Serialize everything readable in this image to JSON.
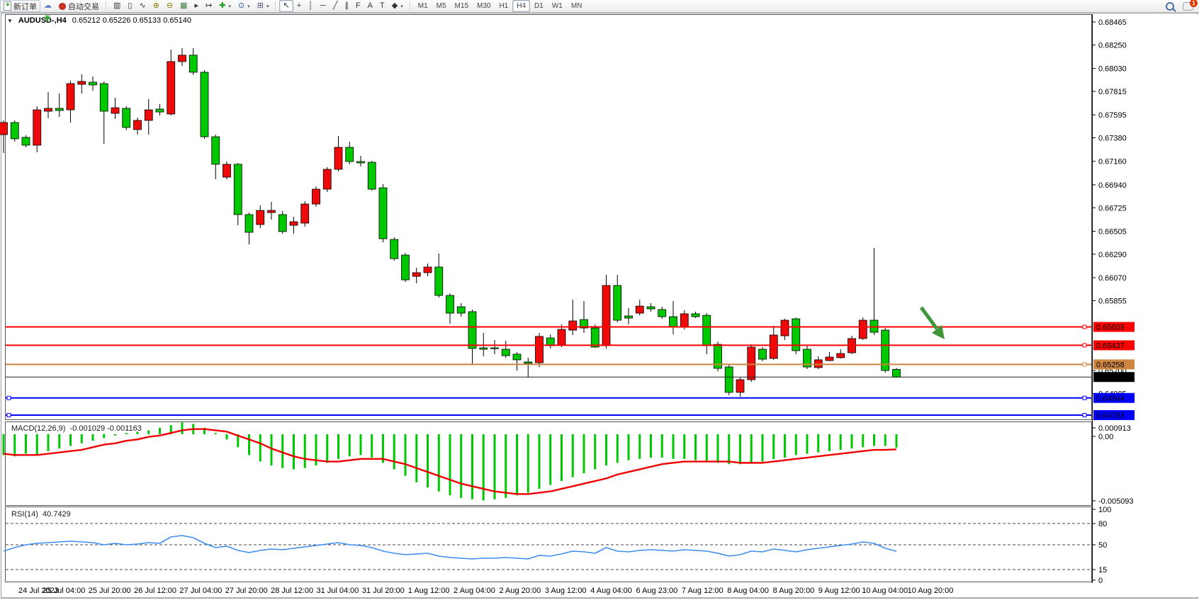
{
  "toolbar": {
    "new_order_label": "新订单",
    "autotrading_label": "自动交易",
    "tool_icons": [
      {
        "name": "metaeditor-icon",
        "glyph": "✎",
        "color": "#c99415"
      },
      {
        "name": "community-icon",
        "glyph": "☁",
        "color": "#5b84c4"
      },
      {
        "name": "signals-icon",
        "glyph": "◉",
        "color": "#2fa32f"
      }
    ],
    "chart_tools": [
      {
        "name": "bar-chart-icon",
        "glyph": "▥",
        "color": "#333"
      },
      {
        "name": "candlestick-chart-icon",
        "glyph": "▯",
        "color": "#333"
      },
      {
        "name": "line-chart-icon",
        "glyph": "∿",
        "color": "#333"
      },
      {
        "name": "zoom-in-icon",
        "glyph": "⊕",
        "color": "#8a7a00"
      },
      {
        "name": "zoom-out-icon",
        "glyph": "⊖",
        "color": "#8a7a00"
      },
      {
        "name": "tile-windows-icon",
        "glyph": "▦",
        "color": "#3a7a3a"
      },
      {
        "name": "auto-scroll-icon",
        "glyph": "▸",
        "color": "#333"
      },
      {
        "name": "chart-shift-icon",
        "glyph": "↦",
        "color": "#333"
      },
      {
        "name": "indicators-icon",
        "glyph": "✚",
        "color": "#1a9c1a",
        "dropdown": true
      },
      {
        "name": "periods-icon",
        "glyph": "⊙",
        "color": "#2255aa",
        "dropdown": true
      },
      {
        "name": "templates-icon",
        "glyph": "⊞",
        "color": "#557",
        "dropdown": true
      }
    ],
    "draw_tools": [
      {
        "name": "cursor-icon",
        "glyph": "↖",
        "active": true
      },
      {
        "name": "crosshair-icon",
        "glyph": "+"
      },
      {
        "name": "vertical-line-icon",
        "glyph": "│"
      },
      {
        "name": "horizontal-line-icon",
        "glyph": "─"
      },
      {
        "name": "trendline-icon",
        "glyph": "╱"
      },
      {
        "name": "channel-icon",
        "glyph": "∥"
      },
      {
        "name": "fibonacci-icon",
        "glyph": "F"
      },
      {
        "name": "text-icon",
        "glyph": "A"
      },
      {
        "name": "label-icon",
        "glyph": "T"
      },
      {
        "name": "shapes-icon",
        "glyph": "◆",
        "dropdown": true
      }
    ],
    "timeframes": [
      "M1",
      "M5",
      "M15",
      "M30",
      "H1",
      "H4",
      "D1",
      "W1",
      "MN"
    ],
    "active_timeframe": "H4",
    "notification_badge": "1"
  },
  "quote": {
    "collapse_glyph": "▼",
    "symbol": "AUDUSD-,H4",
    "ohlc": "0.65212 0.65226 0.65133 0.65140"
  },
  "chart": {
    "colors": {
      "up": "#ee0a0a",
      "down": "#00c800",
      "wick": "#000000",
      "red_line": "#ff0000",
      "orange_line": "#cd8540",
      "blue_line": "#0000ff",
      "bid_line": "#222222",
      "arrow": "#3f9636"
    },
    "price_axis_ticks": [
      "0.68465",
      "0.68250",
      "0.68030",
      "0.67815",
      "0.67595",
      "0.67380",
      "0.67160",
      "0.66940",
      "0.66725",
      "0.66505",
      "0.66290",
      "0.66070",
      "0.65855",
      "0.65200",
      "0.64985"
    ],
    "hlines": [
      {
        "price": 0.65609,
        "label": "0.65609",
        "color": "#ff0000",
        "label_bg": "#ff0000",
        "label_fg": "#ffffff",
        "handles": [
          "right"
        ]
      },
      {
        "price": 0.65437,
        "label": "0.65437",
        "color": "#ff0000",
        "label_bg": "#ff0000",
        "label_fg": "#ffffff",
        "handles": [
          "right"
        ]
      },
      {
        "price": 0.65258,
        "label": "0.65258",
        "color": "#cd8540",
        "label_bg": "#cd8540",
        "label_fg": "#000000",
        "handles": [
          "right"
        ]
      },
      {
        "price": 0.64944,
        "label": "0.64944",
        "color": "#0000ff",
        "label_bg": "#0000ff",
        "label_fg": "#ffffff",
        "handles": [
          "left",
          "right"
        ]
      },
      {
        "price": 0.64783,
        "label": "0.64783",
        "color": "#0000ff",
        "label_bg": "#0000ff",
        "label_fg": "#ffffff",
        "handles": [
          "left",
          "right"
        ]
      }
    ],
    "bid": {
      "price": 0.6514,
      "label": "0.65140",
      "label_bg": "#000000",
      "label_fg": "#ffffff"
    },
    "time_labels": [
      "24 Jul 2023",
      "25 Jul 04:00",
      "25 Jul 20:00",
      "26 Jul 12:00",
      "27 Jul 04:00",
      "27 Jul 20:00",
      "28 Jul 12:00",
      "31 Jul 04:00",
      "31 Jul 20:00",
      "1 Aug 12:00",
      "2 Aug 04:00",
      "2 Aug 20:00",
      "3 Aug 12:00",
      "4 Aug 04:00",
      "6 Aug 23:00",
      "7 Aug 12:00",
      "8 Aug 04:00",
      "8 Aug 20:00",
      "9 Aug 12:00",
      "10 Aug 04:00",
      "10 Aug 20:00"
    ],
    "candles": [
      [
        0.6741,
        0.67543,
        0.67238,
        0.67523
      ],
      [
        0.67523,
        0.67543,
        0.67344,
        0.67371
      ],
      [
        0.67384,
        0.67404,
        0.67291,
        0.67311
      ],
      [
        0.67311,
        0.67676,
        0.67245,
        0.67642
      ],
      [
        0.67629,
        0.67808,
        0.67563,
        0.67656
      ],
      [
        0.67656,
        0.67795,
        0.67576,
        0.67636
      ],
      [
        0.67642,
        0.67915,
        0.67523,
        0.67888
      ],
      [
        0.67881,
        0.67974,
        0.67795,
        0.67908
      ],
      [
        0.67901,
        0.67954,
        0.67821,
        0.67875
      ],
      [
        0.67888,
        0.67908,
        0.67324,
        0.67629
      ],
      [
        0.67609,
        0.67755,
        0.67556,
        0.67662
      ],
      [
        0.67656,
        0.67676,
        0.6745,
        0.67477
      ],
      [
        0.67457,
        0.67569,
        0.6741,
        0.67543
      ],
      [
        0.67543,
        0.67742,
        0.6741,
        0.67642
      ],
      [
        0.67649,
        0.67696,
        0.67589,
        0.67622
      ],
      [
        0.67603,
        0.68206,
        0.67589,
        0.68094
      ],
      [
        0.68094,
        0.6822,
        0.68054,
        0.68154
      ],
      [
        0.68154,
        0.6822,
        0.67968,
        0.67994
      ],
      [
        0.67994,
        0.68014,
        0.67371,
        0.6739
      ],
      [
        0.6739,
        0.6741,
        0.66992,
        0.67132
      ],
      [
        0.67012,
        0.67158,
        0.66992,
        0.67132
      ],
      [
        0.67132,
        0.67145,
        0.66561,
        0.66661
      ],
      [
        0.66661,
        0.6668,
        0.66382,
        0.66495
      ],
      [
        0.66568,
        0.66747,
        0.66535,
        0.667
      ],
      [
        0.6668,
        0.6678,
        0.66614,
        0.667
      ],
      [
        0.66661,
        0.66694,
        0.66481,
        0.66502
      ],
      [
        0.66561,
        0.66641,
        0.66482,
        0.66594
      ],
      [
        0.66581,
        0.66786,
        0.66548,
        0.6676
      ],
      [
        0.6676,
        0.66925,
        0.66734,
        0.66899
      ],
      [
        0.66899,
        0.67105,
        0.66872,
        0.67085
      ],
      [
        0.67085,
        0.67397,
        0.67066,
        0.67291
      ],
      [
        0.67291,
        0.67344,
        0.67132,
        0.67158
      ],
      [
        0.67158,
        0.67211,
        0.67112,
        0.67145
      ],
      [
        0.67151,
        0.67165,
        0.66886,
        0.66899
      ],
      [
        0.66912,
        0.66946,
        0.66402,
        0.66435
      ],
      [
        0.66428,
        0.66448,
        0.66229,
        0.66249
      ],
      [
        0.66282,
        0.66302,
        0.6603,
        0.6605
      ],
      [
        0.66083,
        0.66163,
        0.66017,
        0.66117
      ],
      [
        0.66117,
        0.66203,
        0.66083,
        0.6617
      ],
      [
        0.6617,
        0.66296,
        0.65884,
        0.65904
      ],
      [
        0.65904,
        0.65924,
        0.65639,
        0.65738
      ],
      [
        0.65798,
        0.65831,
        0.65705,
        0.65738
      ],
      [
        0.65752,
        0.65772,
        0.65254,
        0.65407
      ],
      [
        0.65413,
        0.65553,
        0.65334,
        0.654
      ],
      [
        0.65413,
        0.65486,
        0.65354,
        0.65407
      ],
      [
        0.654,
        0.6548,
        0.6532,
        0.6534
      ],
      [
        0.65354,
        0.65374,
        0.65201,
        0.65301
      ],
      [
        0.65281,
        0.65321,
        0.65135,
        0.65268
      ],
      [
        0.65274,
        0.65553,
        0.65234,
        0.6552
      ],
      [
        0.65506,
        0.65539,
        0.65407,
        0.65433
      ],
      [
        0.6544,
        0.65632,
        0.6542,
        0.65586
      ],
      [
        0.65579,
        0.65864,
        0.65533,
        0.65665
      ],
      [
        0.65678,
        0.65851,
        0.65553,
        0.65599
      ],
      [
        0.65599,
        0.65632,
        0.65413,
        0.6542
      ],
      [
        0.65433,
        0.66097,
        0.65407,
        0.65997
      ],
      [
        0.65997,
        0.66097,
        0.65652,
        0.65672
      ],
      [
        0.65712,
        0.65785,
        0.65632,
        0.65692
      ],
      [
        0.65738,
        0.65864,
        0.65718,
        0.65804
      ],
      [
        0.65798,
        0.65831,
        0.65752,
        0.65778
      ],
      [
        0.65772,
        0.65798,
        0.65685,
        0.65705
      ],
      [
        0.65705,
        0.65851,
        0.65539,
        0.65606
      ],
      [
        0.65606,
        0.65765,
        0.65586,
        0.65732
      ],
      [
        0.65732,
        0.65752,
        0.65692,
        0.65705
      ],
      [
        0.65718,
        0.65738,
        0.65354,
        0.65433
      ],
      [
        0.65446,
        0.65473,
        0.65194,
        0.65221
      ],
      [
        0.65234,
        0.65254,
        0.64969,
        0.64996
      ],
      [
        0.64996,
        0.65135,
        0.64956,
        0.65115
      ],
      [
        0.65115,
        0.65446,
        0.65095,
        0.6542
      ],
      [
        0.654,
        0.6542,
        0.65287,
        0.65307
      ],
      [
        0.65314,
        0.65619,
        0.65301,
        0.65533
      ],
      [
        0.65526,
        0.65685,
        0.65486,
        0.65672
      ],
      [
        0.65685,
        0.65698,
        0.65354,
        0.65387
      ],
      [
        0.654,
        0.65433,
        0.65214,
        0.65234
      ],
      [
        0.65228,
        0.65334,
        0.65214,
        0.65301
      ],
      [
        0.65294,
        0.65374,
        0.65287,
        0.65327
      ],
      [
        0.65321,
        0.654,
        0.65314,
        0.6536
      ],
      [
        0.65367,
        0.65526,
        0.65354,
        0.655
      ],
      [
        0.655,
        0.65698,
        0.65486,
        0.65672
      ],
      [
        0.65672,
        0.66349,
        0.65533,
        0.65559
      ],
      [
        0.65579,
        0.65599,
        0.65181,
        0.65201
      ],
      [
        0.65212,
        0.65226,
        0.65133,
        0.6514
      ]
    ]
  },
  "macd": {
    "title": "MACD(12,26,9)",
    "values": "-0.001029 -0.001163",
    "axis": {
      "max": "0.000913",
      "zero": "0.00",
      "min": "-0.005093"
    },
    "hist": [
      -0.0016,
      -0.0017,
      -0.0015,
      -0.0016,
      -0.0013,
      -0.0011,
      -0.0009,
      -0.0007,
      -0.0005,
      -0.0003,
      -0.0001,
      0.0001,
      0.0002,
      0.0003,
      0.0005,
      0.0007,
      0.000913,
      0.0008,
      0.0005,
      0.0001,
      -0.0004,
      -0.001,
      -0.0016,
      -0.0021,
      -0.0024,
      -0.0026,
      -0.0027,
      -0.0026,
      -0.0024,
      -0.0022,
      -0.0019,
      -0.0017,
      -0.0016,
      -0.0018,
      -0.0022,
      -0.0027,
      -0.0032,
      -0.0037,
      -0.0041,
      -0.0044,
      -0.0047,
      -0.0049,
      -0.005,
      -0.005093,
      -0.005,
      -0.0049,
      -0.0047,
      -0.0045,
      -0.0042,
      -0.0039,
      -0.0036,
      -0.0033,
      -0.003,
      -0.0027,
      -0.0024,
      -0.0022,
      -0.002,
      -0.0019,
      -0.0018,
      -0.0018,
      -0.0019,
      -0.0019,
      -0.002,
      -0.0021,
      -0.0022,
      -0.0023,
      -0.0023,
      -0.0022,
      -0.0021,
      -0.0019,
      -0.0018,
      -0.0016,
      -0.0015,
      -0.0014,
      -0.0013,
      -0.0012,
      -0.0011,
      -0.001,
      -0.0009,
      -0.0009,
      -0.001029
    ],
    "signal": [
      -0.0015,
      -0.0016,
      -0.0016,
      -0.0016,
      -0.0015,
      -0.0014,
      -0.0013,
      -0.0012,
      -0.001,
      -0.0008,
      -0.0007,
      -0.0005,
      -0.0004,
      -0.0002,
      -0.0001,
      0.0001,
      0.0003,
      0.0004,
      0.0004,
      0.0003,
      0.0002,
      -0.0001,
      -0.0004,
      -0.0007,
      -0.0011,
      -0.0014,
      -0.0017,
      -0.0019,
      -0.002,
      -0.0021,
      -0.0021,
      -0.002,
      -0.0019,
      -0.0019,
      -0.0019,
      -0.0021,
      -0.0023,
      -0.0026,
      -0.0029,
      -0.0032,
      -0.0035,
      -0.0038,
      -0.004,
      -0.0042,
      -0.0044,
      -0.0045,
      -0.0046,
      -0.0046,
      -0.0045,
      -0.0044,
      -0.0042,
      -0.004,
      -0.0038,
      -0.0036,
      -0.0034,
      -0.0031,
      -0.0029,
      -0.0027,
      -0.0025,
      -0.0023,
      -0.0022,
      -0.0021,
      -0.0021,
      -0.0021,
      -0.0021,
      -0.0021,
      -0.0022,
      -0.0022,
      -0.0022,
      -0.0021,
      -0.002,
      -0.0019,
      -0.0018,
      -0.0017,
      -0.0016,
      -0.0015,
      -0.0014,
      -0.0013,
      -0.0012,
      -0.0012,
      -0.001163
    ]
  },
  "rsi": {
    "title": "RSI(14)",
    "value": "40.7429",
    "axis_labels": [
      "100",
      "80",
      "50",
      "15",
      "0"
    ],
    "levels": [
      80,
      50,
      15
    ],
    "series": [
      41,
      46,
      50,
      52,
      53,
      54,
      55,
      54,
      53,
      50,
      52,
      50,
      51,
      53,
      52,
      61,
      63,
      60,
      52,
      46,
      48,
      42,
      39,
      42,
      44,
      43,
      45,
      47,
      49,
      51,
      53,
      50,
      49,
      46,
      41,
      38,
      36,
      37,
      38,
      34,
      32,
      31,
      30,
      31,
      31,
      32,
      31,
      30,
      35,
      34,
      37,
      41,
      40,
      38,
      46,
      41,
      40,
      42,
      43,
      42,
      41,
      43,
      42,
      41,
      38,
      34,
      36,
      41,
      40,
      44,
      42,
      40,
      43,
      45,
      47,
      49,
      51,
      54,
      52,
      45,
      40.7429
    ]
  }
}
